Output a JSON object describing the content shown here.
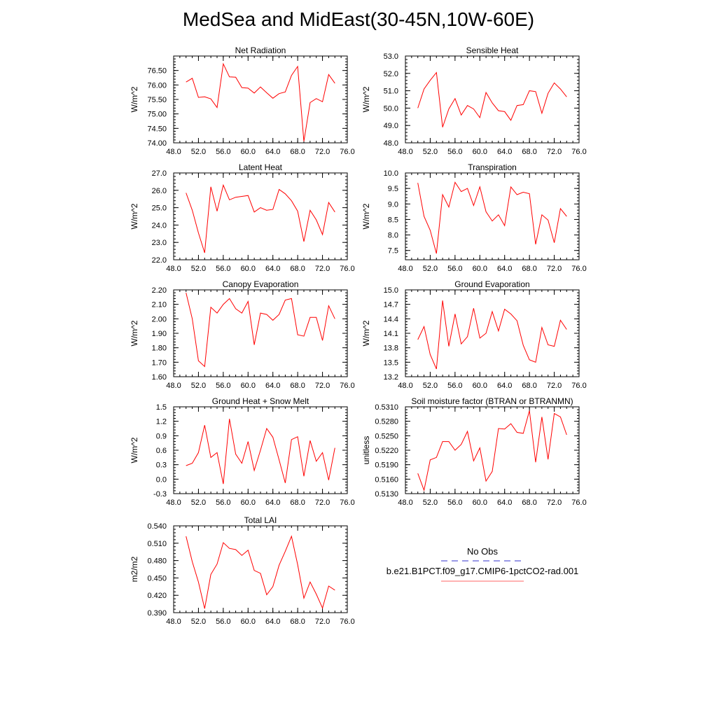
{
  "figure": {
    "title": "MedSea and MidEast(30-45N,10W-60E)"
  },
  "legend": {
    "entries": [
      {
        "label": "No Obs",
        "color": "#3333cc",
        "style": "dashed"
      },
      {
        "label": "b.e21.B1PCT.f09_g17.CMIP6-1pctCO2-rad.001",
        "color": "#ff6666",
        "style": "solid"
      }
    ]
  },
  "chart_data": [
    {
      "type": "line",
      "title": "Net Radiation",
      "xlabel": "",
      "ylabel": "W/m^2",
      "xlim": [
        48,
        76
      ],
      "ylim": [
        74.0,
        77.0
      ],
      "xticks": [
        48,
        52,
        56,
        60,
        64,
        68,
        72,
        76
      ],
      "yticks": [
        74.0,
        74.5,
        75.0,
        75.5,
        76.0,
        76.5
      ],
      "ydec": 2,
      "xdec": 1,
      "series": [
        {
          "color": "#ff0000",
          "x": [
            50,
            51,
            52,
            53,
            54,
            55,
            56,
            57,
            58,
            59,
            60,
            61,
            62,
            63,
            64,
            65,
            66,
            67,
            68,
            69,
            70,
            71,
            72,
            73,
            74
          ],
          "y": [
            76.1,
            76.23,
            75.57,
            75.59,
            75.52,
            75.22,
            76.73,
            76.28,
            76.27,
            75.91,
            75.89,
            75.72,
            75.93,
            75.73,
            75.54,
            75.7,
            75.76,
            76.33,
            76.64,
            74.05,
            75.39,
            75.53,
            75.42,
            76.36,
            76.06
          ]
        }
      ]
    },
    {
      "type": "line",
      "title": "Sensible Heat",
      "xlabel": "",
      "ylabel": "W/m^2",
      "xlim": [
        48,
        76
      ],
      "ylim": [
        48.0,
        53.0
      ],
      "xticks": [
        48,
        52,
        56,
        60,
        64,
        68,
        72,
        76
      ],
      "yticks": [
        48.0,
        49.0,
        50.0,
        51.0,
        52.0,
        53.0
      ],
      "ydec": 1,
      "xdec": 1,
      "series": [
        {
          "color": "#ff0000",
          "x": [
            50,
            51,
            52,
            53,
            54,
            55,
            56,
            57,
            58,
            59,
            60,
            61,
            62,
            63,
            64,
            65,
            66,
            67,
            68,
            69,
            70,
            71,
            72,
            73,
            74
          ],
          "y": [
            50.0,
            51.1,
            51.6,
            52.05,
            48.9,
            49.95,
            50.55,
            49.6,
            50.15,
            49.95,
            49.45,
            50.9,
            50.3,
            49.85,
            49.8,
            49.3,
            50.15,
            50.2,
            51.0,
            50.95,
            49.7,
            50.85,
            51.45,
            51.1,
            50.65
          ]
        }
      ]
    },
    {
      "type": "line",
      "title": "Latent Heat",
      "xlabel": "",
      "ylabel": "W/m^2",
      "xlim": [
        48,
        76
      ],
      "ylim": [
        22.0,
        27.0
      ],
      "xticks": [
        48,
        52,
        56,
        60,
        64,
        68,
        72,
        76
      ],
      "yticks": [
        22.0,
        23.0,
        24.0,
        25.0,
        26.0,
        27.0
      ],
      "ydec": 1,
      "xdec": 1,
      "series": [
        {
          "color": "#ff0000",
          "x": [
            50,
            51,
            52,
            53,
            54,
            55,
            56,
            57,
            58,
            59,
            60,
            61,
            62,
            63,
            64,
            65,
            66,
            67,
            68,
            69,
            70,
            71,
            72,
            73,
            74
          ],
          "y": [
            25.85,
            24.85,
            23.55,
            22.4,
            26.2,
            24.8,
            26.3,
            25.45,
            25.6,
            25.65,
            25.7,
            24.75,
            25.0,
            24.85,
            24.9,
            26.05,
            25.8,
            25.4,
            24.8,
            23.05,
            24.85,
            24.3,
            23.45,
            25.3,
            24.75
          ]
        }
      ]
    },
    {
      "type": "line",
      "title": "Transpiration",
      "xlabel": "",
      "ylabel": "W/m^2",
      "xlim": [
        48,
        76
      ],
      "ylim": [
        7.2,
        10.0
      ],
      "xticks": [
        48,
        52,
        56,
        60,
        64,
        68,
        72,
        76
      ],
      "yticks": [
        7.5,
        8.0,
        8.5,
        9.0,
        9.5,
        10.0
      ],
      "ydec": 1,
      "xdec": 1,
      "series": [
        {
          "color": "#ff0000",
          "x": [
            50,
            51,
            52,
            53,
            54,
            55,
            56,
            57,
            58,
            59,
            60,
            61,
            62,
            63,
            64,
            65,
            66,
            67,
            68,
            69,
            70,
            71,
            72,
            73,
            74
          ],
          "y": [
            9.68,
            8.6,
            8.15,
            7.4,
            9.3,
            8.9,
            9.7,
            9.4,
            9.5,
            8.95,
            9.55,
            8.75,
            8.45,
            8.65,
            8.3,
            9.55,
            9.3,
            9.38,
            9.33,
            7.7,
            8.65,
            8.48,
            7.75,
            8.85,
            8.6
          ]
        }
      ]
    },
    {
      "type": "line",
      "title": "Canopy Evaporation",
      "xlabel": "",
      "ylabel": "W/m^2",
      "xlim": [
        48,
        76
      ],
      "ylim": [
        1.6,
        2.2
      ],
      "xticks": [
        48,
        52,
        56,
        60,
        64,
        68,
        72,
        76
      ],
      "yticks": [
        1.6,
        1.7,
        1.8,
        1.9,
        2.0,
        2.1,
        2.2
      ],
      "ydec": 2,
      "xdec": 1,
      "series": [
        {
          "color": "#ff0000",
          "x": [
            50,
            51,
            52,
            53,
            54,
            55,
            56,
            57,
            58,
            59,
            60,
            61,
            62,
            63,
            64,
            65,
            66,
            67,
            68,
            69,
            70,
            71,
            72,
            73,
            74
          ],
          "y": [
            2.18,
            2.0,
            1.71,
            1.67,
            2.08,
            2.04,
            2.1,
            2.14,
            2.07,
            2.04,
            2.12,
            1.82,
            2.04,
            2.03,
            1.99,
            2.03,
            2.13,
            2.14,
            1.89,
            1.88,
            2.01,
            2.01,
            1.85,
            2.09,
            2.0
          ]
        }
      ]
    },
    {
      "type": "line",
      "title": "Ground Evaporation",
      "xlabel": "",
      "ylabel": "W/m^2",
      "xlim": [
        48,
        76
      ],
      "ylim": [
        13.2,
        15.0
      ],
      "xticks": [
        48,
        52,
        56,
        60,
        64,
        68,
        72,
        76
      ],
      "yticks": [
        13.2,
        13.5,
        13.8,
        14.1,
        14.4,
        14.7,
        15.0
      ],
      "ydec": 1,
      "xdec": 1,
      "series": [
        {
          "color": "#ff0000",
          "x": [
            50,
            51,
            52,
            53,
            54,
            55,
            56,
            57,
            58,
            59,
            60,
            61,
            62,
            63,
            64,
            65,
            66,
            67,
            68,
            69,
            70,
            71,
            72,
            73,
            74
          ],
          "y": [
            13.97,
            14.24,
            13.66,
            13.36,
            14.78,
            13.83,
            14.5,
            13.88,
            14.03,
            14.62,
            14.0,
            14.1,
            14.55,
            14.15,
            14.6,
            14.5,
            14.36,
            13.85,
            13.55,
            13.5,
            14.22,
            13.86,
            13.83,
            14.37,
            14.18
          ]
        }
      ]
    },
    {
      "type": "line",
      "title": "Ground Heat + Snow Melt",
      "xlabel": "",
      "ylabel": "W/m^2",
      "xlim": [
        48,
        76
      ],
      "ylim": [
        -0.3,
        1.5
      ],
      "xticks": [
        48,
        52,
        56,
        60,
        64,
        68,
        72,
        76
      ],
      "yticks": [
        -0.3,
        0.0,
        0.3,
        0.6,
        0.9,
        1.2,
        1.5
      ],
      "ydec": 1,
      "xdec": 1,
      "series": [
        {
          "color": "#ff0000",
          "x": [
            50,
            51,
            52,
            53,
            54,
            55,
            56,
            57,
            58,
            59,
            60,
            61,
            62,
            63,
            64,
            65,
            66,
            67,
            68,
            69,
            70,
            71,
            72,
            73,
            74
          ],
          "y": [
            0.28,
            0.33,
            0.55,
            1.12,
            0.45,
            0.55,
            -0.1,
            1.25,
            0.52,
            0.33,
            0.78,
            0.18,
            0.6,
            1.05,
            0.87,
            0.4,
            -0.08,
            0.82,
            0.88,
            0.06,
            0.8,
            0.37,
            0.55,
            -0.02,
            0.65
          ]
        }
      ]
    },
    {
      "type": "line",
      "title": "Soil moisture factor (BTRAN or BTRANMN)",
      "xlabel": "",
      "ylabel": "unitless",
      "xlim": [
        48,
        76
      ],
      "ylim": [
        0.513,
        0.531
      ],
      "xticks": [
        48,
        52,
        56,
        60,
        64,
        68,
        72,
        76
      ],
      "yticks": [
        0.513,
        0.516,
        0.519,
        0.522,
        0.525,
        0.528,
        0.531
      ],
      "ydec": 4,
      "xdec": 1,
      "series": [
        {
          "color": "#ff0000",
          "x": [
            50,
            51,
            52,
            53,
            54,
            55,
            56,
            57,
            58,
            59,
            60,
            61,
            62,
            63,
            64,
            65,
            66,
            67,
            68,
            69,
            70,
            71,
            72,
            73,
            74
          ],
          "y": [
            0.5172,
            0.5137,
            0.52,
            0.5205,
            0.5238,
            0.5238,
            0.522,
            0.5232,
            0.5259,
            0.5198,
            0.5225,
            0.5156,
            0.5176,
            0.5265,
            0.5264,
            0.5275,
            0.5257,
            0.5255,
            0.5302,
            0.5195,
            0.5289,
            0.5201,
            0.5296,
            0.5289,
            0.5252
          ]
        }
      ]
    },
    {
      "type": "line",
      "title": "Total LAI",
      "xlabel": "",
      "ylabel": "m2/m2",
      "xlim": [
        48,
        76
      ],
      "ylim": [
        0.39,
        0.54
      ],
      "xticks": [
        48,
        52,
        56,
        60,
        64,
        68,
        72,
        76
      ],
      "yticks": [
        0.39,
        0.42,
        0.45,
        0.48,
        0.51,
        0.54
      ],
      "ydec": 3,
      "xdec": 1,
      "series": [
        {
          "color": "#ff0000",
          "x": [
            50,
            51,
            52,
            53,
            54,
            55,
            56,
            57,
            58,
            59,
            60,
            61,
            62,
            63,
            64,
            65,
            66,
            67,
            68,
            69,
            70,
            71,
            72,
            73,
            74
          ],
          "y": [
            0.522,
            0.478,
            0.443,
            0.397,
            0.456,
            0.474,
            0.511,
            0.501,
            0.499,
            0.489,
            0.498,
            0.463,
            0.458,
            0.421,
            0.435,
            0.472,
            0.496,
            0.522,
            0.473,
            0.415,
            0.443,
            0.422,
            0.398,
            0.436,
            0.429
          ]
        }
      ]
    }
  ]
}
